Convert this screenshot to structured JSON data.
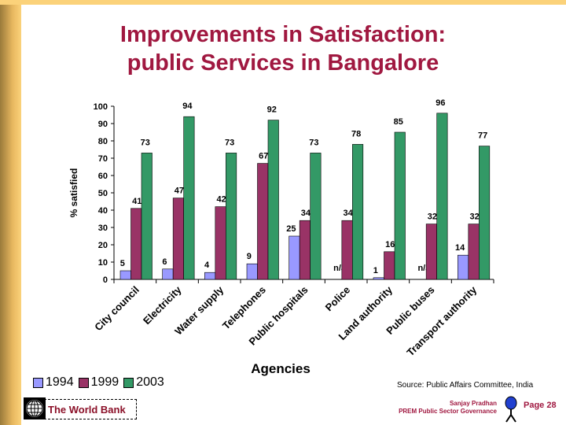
{
  "slide": {
    "title_line1": "Improvements in Satisfaction:",
    "title_line2": "public Services in Bangalore",
    "source": "Source: Public Affairs Committee, India",
    "org": "The World Bank",
    "author": "Sanjay Pradhan",
    "unit": "PREM Public Sector Governance",
    "page": "Page 28"
  },
  "chart_data": {
    "type": "bar",
    "title": "",
    "xlabel": "Agencies",
    "ylabel": "% satisfied",
    "ylim": [
      0,
      100
    ],
    "yticks": [
      0,
      10,
      20,
      30,
      40,
      50,
      60,
      70,
      80,
      90,
      100
    ],
    "grid": false,
    "legend": "bottom-left",
    "categories": [
      "City council",
      "Electricity",
      "Water supply",
      "Telephones",
      "Public hospitals",
      "Police",
      "Land authority",
      "Public buses",
      "Transport authority"
    ],
    "series": [
      {
        "name": "1994",
        "color": "#9999ff",
        "values": [
          5,
          6,
          4,
          9,
          25,
          null,
          1,
          null,
          14
        ]
      },
      {
        "name": "1999",
        "color": "#993366",
        "values": [
          41,
          47,
          42,
          67,
          34,
          34,
          16,
          32,
          32
        ]
      },
      {
        "name": "2003",
        "color": "#339966",
        "values": [
          73,
          94,
          73,
          92,
          73,
          78,
          85,
          96,
          77
        ]
      }
    ],
    "missing_label": "n/a"
  }
}
